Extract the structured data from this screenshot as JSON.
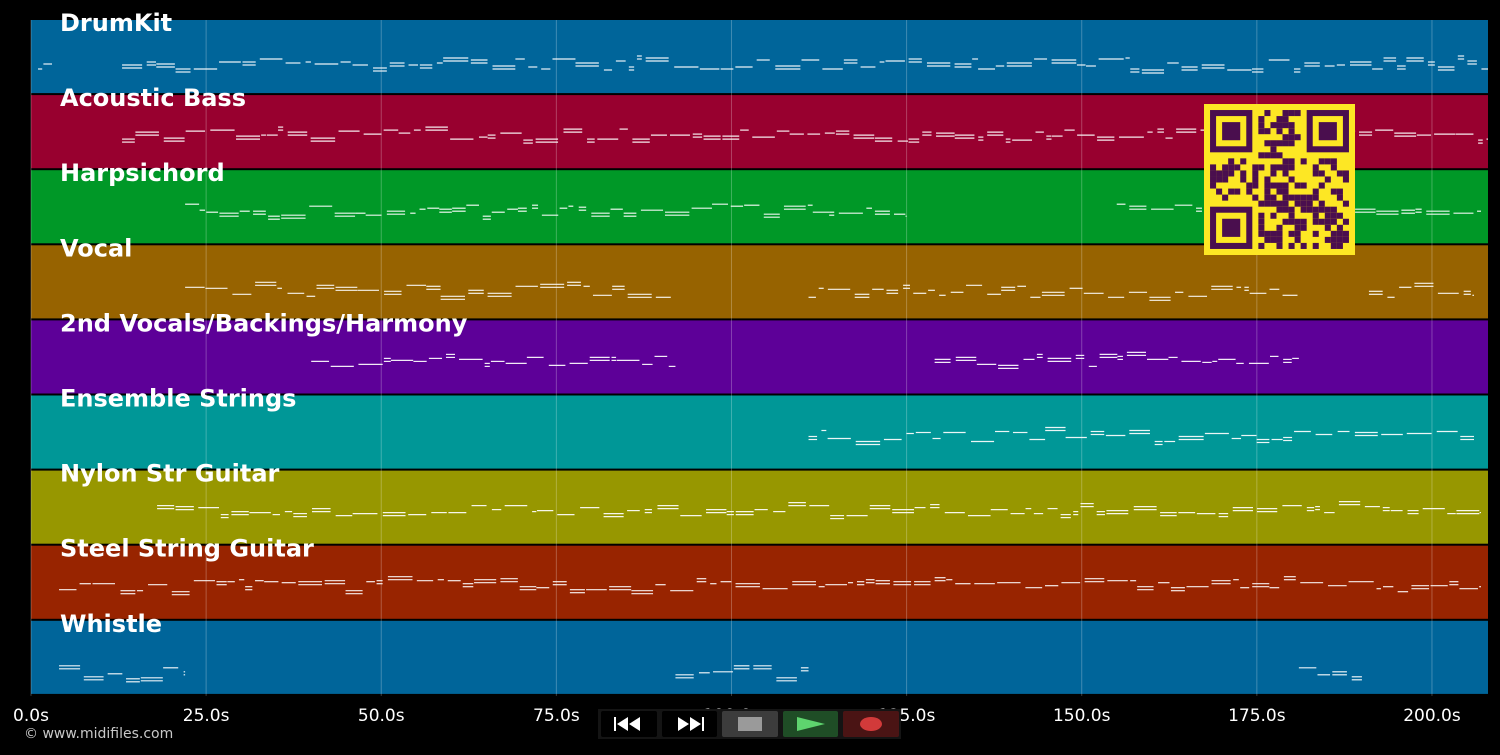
{
  "tracks": [
    {
      "name": "DrumKit",
      "color": "#00659a"
    },
    {
      "name": "Acoustic Bass",
      "color": "#98002f"
    },
    {
      "name": "Harpsichord",
      "color": "#009827"
    },
    {
      "name": "Vocal",
      "color": "#976300"
    },
    {
      "name": "2nd Vocals/Backings/Harmony",
      "color": "#5d0098"
    },
    {
      "name": "Ensemble Strings",
      "color": "#009797"
    },
    {
      "name": "Nylon Str Guitar",
      "color": "#979700"
    },
    {
      "name": "Steel String Guitar",
      "color": "#982400"
    },
    {
      "name": "Whistle",
      "color": "#00659a"
    }
  ],
  "time_axis": {
    "ticks": [
      "0.0s",
      "25.0s",
      "50.0s",
      "75.0s",
      "100.0s",
      "125.0s",
      "150.0s",
      "175.0s",
      "200.0s"
    ],
    "tick_values": [
      0,
      25,
      50,
      75,
      100,
      125,
      150,
      175,
      200
    ],
    "max_seconds": 208
  },
  "transport": {
    "buttons": [
      {
        "name": "rewind-button",
        "icon": "rewind-icon"
      },
      {
        "name": "fast-forward-button",
        "icon": "fast-forward-icon"
      },
      {
        "name": "stop-button",
        "icon": "stop-icon"
      },
      {
        "name": "play-button",
        "icon": "play-icon"
      },
      {
        "name": "record-button",
        "icon": "record-icon"
      }
    ]
  },
  "qr_code": {
    "fg": "#4a0e4e",
    "bg": "#fde724"
  },
  "copyright": "© www.midifiles.com"
}
